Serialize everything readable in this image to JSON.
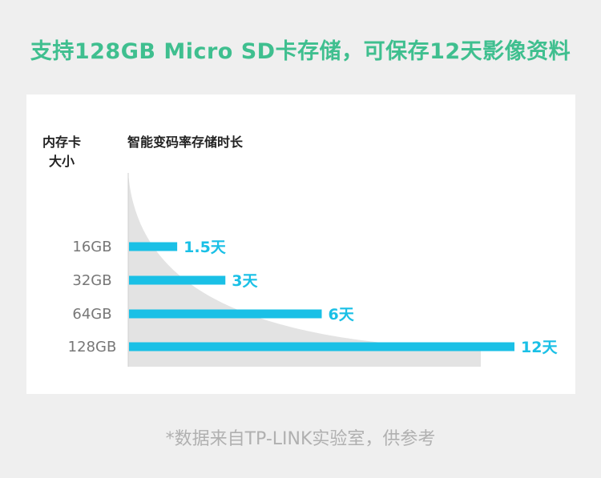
{
  "headline": "支持128GB Micro SD卡存储，可保存12天影像资料",
  "footnote": "*数据来自TP-LINK实验室，供参考",
  "colors": {
    "headline": "#3fbf8f",
    "bar": "#1ac0e6",
    "curve_fill": "#e3e3e3",
    "axis_text": "#777777"
  },
  "chart_data": {
    "type": "bar",
    "orientation": "horizontal",
    "ylabel": "内存卡大小",
    "ylabel_lines": [
      "内存卡",
      "大小"
    ],
    "xlabel": "智能变码率存储时长",
    "categories": [
      "16GB",
      "32GB",
      "64GB",
      "128GB"
    ],
    "values": [
      1.5,
      3,
      6,
      12
    ],
    "data_labels": [
      "1.5天",
      "3天",
      "6天",
      "12天"
    ],
    "unit": "天",
    "xlim": [
      0,
      12
    ],
    "grid": false,
    "legend": false
  }
}
